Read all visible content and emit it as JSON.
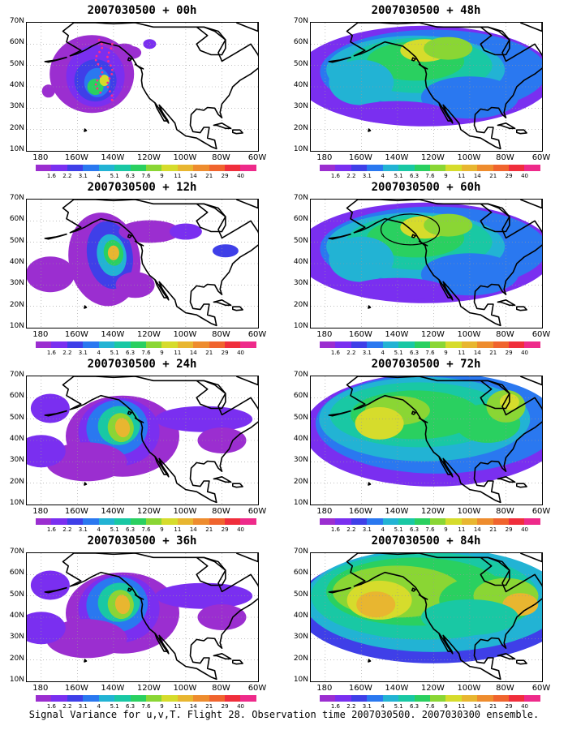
{
  "panels": [
    {
      "title": "2007030500 + 00h",
      "level": 0
    },
    {
      "title": "2007030500 + 48h",
      "level": 3
    },
    {
      "title": "2007030500 + 12h",
      "level": 1
    },
    {
      "title": "2007030500 + 60h",
      "level": 3
    },
    {
      "title": "2007030500 + 24h",
      "level": 2
    },
    {
      "title": "2007030500 + 72h",
      "level": 4
    },
    {
      "title": "2007030500 + 36h",
      "level": 2
    },
    {
      "title": "2007030500 + 84h",
      "level": 5
    }
  ],
  "axis": {
    "lat_labels": [
      "70N",
      "60N",
      "50N",
      "40N",
      "30N",
      "20N",
      "10N"
    ],
    "lon_labels": [
      "180",
      "160W",
      "140W",
      "120W",
      "100W",
      "80W",
      "60W"
    ]
  },
  "colorbar": {
    "labels": [
      "1.6",
      "2.2",
      "3.1",
      "4",
      "5.1",
      "6.3",
      "7.6",
      "9",
      "11",
      "14",
      "21",
      "29",
      "40"
    ],
    "colors": [
      "#9b2ed0",
      "#7a2ff0",
      "#3f3fe8",
      "#2a78f0",
      "#22b3d4",
      "#19c8a4",
      "#2ad060",
      "#8ad634",
      "#d6dc2c",
      "#e8b630",
      "#ee8c2e",
      "#f0642e",
      "#f02e3c",
      "#ee2a8a"
    ]
  },
  "footer": "Signal Variance for u,v,T. Flight 28. Observation time 2007030500. 2007030300 ensemble."
}
